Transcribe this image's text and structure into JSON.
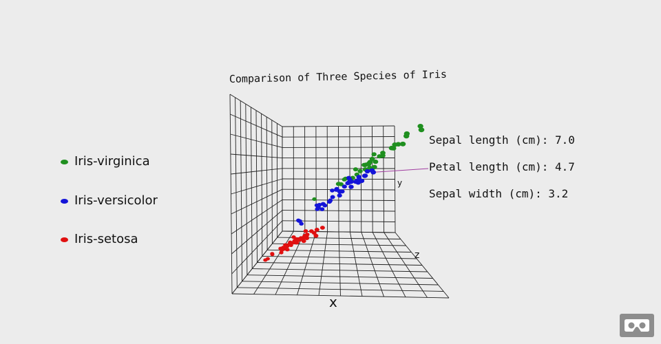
{
  "chart_data": {
    "type": "scatter",
    "title": "Comparison of Three Species of Iris",
    "axes": {
      "x": "x",
      "y": "y",
      "z": "z"
    },
    "grid": true,
    "legend_position": "left",
    "series": [
      {
        "name": "Iris-virginica",
        "color": "#1f8f1f",
        "points": [
          {
            "x": 7.2,
            "y": 6.0,
            "z": 3.6
          },
          {
            "x": 7.7,
            "y": 6.7,
            "z": 3.8
          },
          {
            "x": 7.7,
            "y": 6.9,
            "z": 2.6
          },
          {
            "x": 7.6,
            "y": 6.6,
            "z": 3.0
          },
          {
            "x": 7.3,
            "y": 6.3,
            "z": 2.9
          },
          {
            "x": 7.9,
            "y": 6.4,
            "z": 3.8
          },
          {
            "x": 7.4,
            "y": 6.1,
            "z": 2.8
          },
          {
            "x": 7.7,
            "y": 6.1,
            "z": 3.0
          },
          {
            "x": 7.2,
            "y": 6.1,
            "z": 3.0
          },
          {
            "x": 6.8,
            "y": 5.5,
            "z": 3.0
          },
          {
            "x": 6.7,
            "y": 5.7,
            "z": 3.3
          },
          {
            "x": 6.9,
            "y": 5.7,
            "z": 3.2
          },
          {
            "x": 6.4,
            "y": 5.6,
            "z": 2.8
          },
          {
            "x": 6.5,
            "y": 5.8,
            "z": 3.0
          },
          {
            "x": 6.3,
            "y": 5.6,
            "z": 2.9
          },
          {
            "x": 6.7,
            "y": 5.8,
            "z": 2.5
          },
          {
            "x": 6.4,
            "y": 5.5,
            "z": 3.2
          },
          {
            "x": 6.5,
            "y": 5.5,
            "z": 3.0
          },
          {
            "x": 6.3,
            "y": 6.0,
            "z": 3.3
          },
          {
            "x": 6.2,
            "y": 5.4,
            "z": 3.4
          },
          {
            "x": 6.0,
            "y": 5.1,
            "z": 2.7
          },
          {
            "x": 6.1,
            "y": 5.6,
            "z": 2.6
          },
          {
            "x": 5.8,
            "y": 5.1,
            "z": 2.7
          },
          {
            "x": 6.0,
            "y": 5.0,
            "z": 2.2
          },
          {
            "x": 6.4,
            "y": 5.3,
            "z": 2.7
          },
          {
            "x": 6.3,
            "y": 5.1,
            "z": 2.8
          },
          {
            "x": 6.9,
            "y": 5.1,
            "z": 3.1
          },
          {
            "x": 6.7,
            "y": 5.2,
            "z": 3.0
          },
          {
            "x": 5.6,
            "y": 4.9,
            "z": 2.8
          },
          {
            "x": 5.7,
            "y": 5.0,
            "z": 2.5
          },
          {
            "x": 6.2,
            "y": 4.8,
            "z": 2.8
          },
          {
            "x": 6.1,
            "y": 4.9,
            "z": 3.0
          },
          {
            "x": 4.9,
            "y": 4.5,
            "z": 2.5
          },
          {
            "x": 6.5,
            "y": 5.2,
            "z": 3.0
          },
          {
            "x": 6.8,
            "y": 5.9,
            "z": 3.2
          },
          {
            "x": 5.8,
            "y": 5.1,
            "z": 2.8
          }
        ]
      },
      {
        "name": "Iris-versicolor",
        "color": "#1414d8",
        "points": [
          {
            "x": 7.0,
            "y": 4.7,
            "z": 3.2
          },
          {
            "x": 6.4,
            "y": 4.5,
            "z": 3.2
          },
          {
            "x": 6.9,
            "y": 4.9,
            "z": 3.1
          },
          {
            "x": 5.5,
            "y": 4.0,
            "z": 2.3
          },
          {
            "x": 6.5,
            "y": 4.6,
            "z": 2.8
          },
          {
            "x": 5.7,
            "y": 4.5,
            "z": 2.8
          },
          {
            "x": 6.3,
            "y": 4.7,
            "z": 3.3
          },
          {
            "x": 4.9,
            "y": 3.3,
            "z": 2.4
          },
          {
            "x": 6.6,
            "y": 4.6,
            "z": 2.9
          },
          {
            "x": 5.2,
            "y": 3.9,
            "z": 2.7
          },
          {
            "x": 5.0,
            "y": 3.5,
            "z": 2.0
          },
          {
            "x": 5.9,
            "y": 4.2,
            "z": 3.0
          },
          {
            "x": 6.0,
            "y": 4.0,
            "z": 2.2
          },
          {
            "x": 6.1,
            "y": 4.7,
            "z": 2.9
          },
          {
            "x": 5.6,
            "y": 3.6,
            "z": 2.9
          },
          {
            "x": 6.7,
            "y": 4.4,
            "z": 3.1
          },
          {
            "x": 5.6,
            "y": 4.5,
            "z": 3.0
          },
          {
            "x": 5.8,
            "y": 4.1,
            "z": 2.7
          },
          {
            "x": 6.2,
            "y": 4.5,
            "z": 2.2
          },
          {
            "x": 5.6,
            "y": 3.9,
            "z": 2.5
          },
          {
            "x": 5.9,
            "y": 4.8,
            "z": 3.2
          },
          {
            "x": 6.1,
            "y": 4.0,
            "z": 2.8
          },
          {
            "x": 6.3,
            "y": 4.9,
            "z": 2.5
          },
          {
            "x": 6.1,
            "y": 4.7,
            "z": 2.8
          },
          {
            "x": 6.4,
            "y": 4.3,
            "z": 2.9
          },
          {
            "x": 6.6,
            "y": 4.4,
            "z": 3.0
          },
          {
            "x": 6.8,
            "y": 4.8,
            "z": 2.8
          },
          {
            "x": 6.7,
            "y": 5.0,
            "z": 3.0
          },
          {
            "x": 6.0,
            "y": 4.5,
            "z": 2.9
          },
          {
            "x": 5.7,
            "y": 3.5,
            "z": 2.6
          },
          {
            "x": 5.5,
            "y": 3.8,
            "z": 2.4
          },
          {
            "x": 5.5,
            "y": 3.7,
            "z": 2.4
          },
          {
            "x": 5.8,
            "y": 3.9,
            "z": 2.7
          },
          {
            "x": 6.0,
            "y": 5.1,
            "z": 2.7
          },
          {
            "x": 5.4,
            "y": 4.5,
            "z": 3.0
          },
          {
            "x": 6.0,
            "y": 4.5,
            "z": 3.4
          },
          {
            "x": 6.7,
            "y": 4.7,
            "z": 3.1
          },
          {
            "x": 6.3,
            "y": 4.4,
            "z": 2.3
          },
          {
            "x": 5.1,
            "y": 3.0,
            "z": 2.5
          },
          {
            "x": 5.0,
            "y": 3.3,
            "z": 2.3
          }
        ]
      },
      {
        "name": "Iris-setosa",
        "color": "#e01010",
        "points": [
          {
            "x": 5.1,
            "y": 1.4,
            "z": 3.5
          },
          {
            "x": 4.9,
            "y": 1.4,
            "z": 3.0
          },
          {
            "x": 4.7,
            "y": 1.3,
            "z": 3.2
          },
          {
            "x": 4.6,
            "y": 1.5,
            "z": 3.1
          },
          {
            "x": 5.0,
            "y": 1.4,
            "z": 3.6
          },
          {
            "x": 5.4,
            "y": 1.7,
            "z": 3.9
          },
          {
            "x": 4.6,
            "y": 1.4,
            "z": 3.4
          },
          {
            "x": 5.0,
            "y": 1.5,
            "z": 3.4
          },
          {
            "x": 4.4,
            "y": 1.4,
            "z": 2.9
          },
          {
            "x": 4.9,
            "y": 1.5,
            "z": 3.1
          },
          {
            "x": 5.4,
            "y": 1.5,
            "z": 3.7
          },
          {
            "x": 4.8,
            "y": 1.6,
            "z": 3.4
          },
          {
            "x": 4.8,
            "y": 1.4,
            "z": 3.0
          },
          {
            "x": 4.3,
            "y": 1.1,
            "z": 3.0
          },
          {
            "x": 5.8,
            "y": 1.2,
            "z": 4.0
          },
          {
            "x": 5.7,
            "y": 1.5,
            "z": 4.4
          },
          {
            "x": 5.4,
            "y": 1.3,
            "z": 3.9
          },
          {
            "x": 5.1,
            "y": 1.4,
            "z": 3.5
          },
          {
            "x": 5.7,
            "y": 1.7,
            "z": 3.8
          },
          {
            "x": 5.1,
            "y": 1.5,
            "z": 3.8
          },
          {
            "x": 5.4,
            "y": 1.7,
            "z": 3.4
          },
          {
            "x": 5.1,
            "y": 1.5,
            "z": 3.7
          },
          {
            "x": 4.6,
            "y": 1.0,
            "z": 3.6
          },
          {
            "x": 5.1,
            "y": 1.7,
            "z": 3.3
          },
          {
            "x": 4.8,
            "y": 1.9,
            "z": 3.4
          },
          {
            "x": 5.0,
            "y": 1.6,
            "z": 3.0
          },
          {
            "x": 5.0,
            "y": 1.6,
            "z": 3.4
          },
          {
            "x": 5.2,
            "y": 1.5,
            "z": 3.5
          },
          {
            "x": 5.2,
            "y": 1.4,
            "z": 3.4
          },
          {
            "x": 4.7,
            "y": 1.6,
            "z": 3.2
          },
          {
            "x": 4.8,
            "y": 1.6,
            "z": 3.1
          },
          {
            "x": 5.4,
            "y": 1.5,
            "z": 3.4
          },
          {
            "x": 5.2,
            "y": 1.5,
            "z": 4.1
          },
          {
            "x": 5.5,
            "y": 1.4,
            "z": 4.2
          },
          {
            "x": 4.9,
            "y": 1.5,
            "z": 3.1
          },
          {
            "x": 5.0,
            "y": 1.2,
            "z": 3.2
          },
          {
            "x": 5.5,
            "y": 1.3,
            "z": 3.5
          },
          {
            "x": 4.4,
            "y": 1.3,
            "z": 3.0
          },
          {
            "x": 5.1,
            "y": 1.5,
            "z": 3.4
          },
          {
            "x": 4.5,
            "y": 1.3,
            "z": 2.3
          },
          {
            "x": 5.0,
            "y": 1.6,
            "z": 3.5
          },
          {
            "x": 5.1,
            "y": 1.9,
            "z": 3.8
          },
          {
            "x": 5.3,
            "y": 1.5,
            "z": 3.7
          },
          {
            "x": 5.0,
            "y": 1.4,
            "z": 3.3
          }
        ]
      }
    ]
  },
  "tooltip": {
    "sepal_length": "Sepal length (cm): 7.0",
    "petal_length": "Petal length (cm): 4.7",
    "sepal_width": "Sepal width (cm): 3.2"
  },
  "controls": {
    "vr_icon": "vr-headset-icon"
  }
}
